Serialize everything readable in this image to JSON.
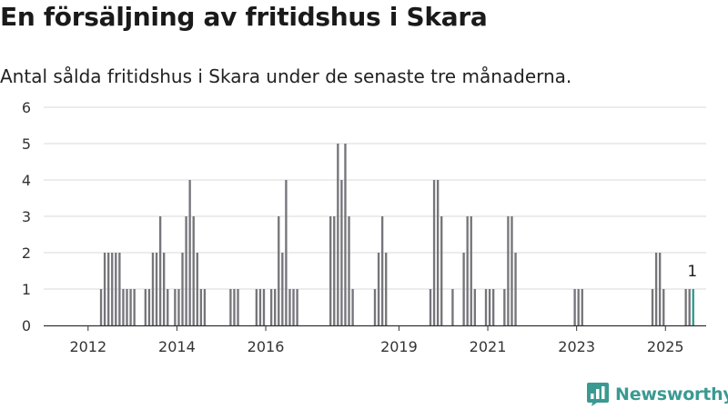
{
  "header": {
    "title": "En försäljning av fritidshus i Skara",
    "subtitle": "Antal sålda fritidshus i Skara under de senaste tre månaderna."
  },
  "brand": {
    "name": "Newsworthy",
    "color": "#3a9a91"
  },
  "colors": {
    "bar": "#76757b",
    "highlight": "#2a9d8f",
    "grid": "#d8d8d8",
    "axis": "#333333"
  },
  "chart_data": {
    "type": "bar",
    "title": "En försäljning av fritidshus i Skara",
    "subtitle": "Antal sålda fritidshus i Skara under de senaste tre månaderna.",
    "xlabel": "",
    "ylabel": "",
    "ylim": [
      0,
      6
    ],
    "yticks": [
      "0",
      "1",
      "2",
      "3",
      "4",
      "5",
      "6"
    ],
    "xticks": [
      {
        "label": "2012",
        "x": "2012-01"
      },
      {
        "label": "2014",
        "x": "2014-01"
      },
      {
        "label": "2016",
        "x": "2016-01"
      },
      {
        "label": "2019",
        "x": "2019-01"
      },
      {
        "label": "2021",
        "x": "2021-01"
      },
      {
        "label": "2023",
        "x": "2023-01"
      },
      {
        "label": "2025",
        "x": "2025-01"
      }
    ],
    "grid": true,
    "bars": [
      {
        "x": "2012-04",
        "y": 1
      },
      {
        "x": "2012-05",
        "y": 2
      },
      {
        "x": "2012-06",
        "y": 2
      },
      {
        "x": "2012-07",
        "y": 2
      },
      {
        "x": "2012-08",
        "y": 2
      },
      {
        "x": "2012-09",
        "y": 2
      },
      {
        "x": "2012-10",
        "y": 1
      },
      {
        "x": "2012-11",
        "y": 1
      },
      {
        "x": "2012-12",
        "y": 1
      },
      {
        "x": "2013-01",
        "y": 1
      },
      {
        "x": "2013-04",
        "y": 1
      },
      {
        "x": "2013-05",
        "y": 1
      },
      {
        "x": "2013-06",
        "y": 2
      },
      {
        "x": "2013-07",
        "y": 2
      },
      {
        "x": "2013-08",
        "y": 3
      },
      {
        "x": "2013-09",
        "y": 2
      },
      {
        "x": "2013-10",
        "y": 1
      },
      {
        "x": "2013-12",
        "y": 1
      },
      {
        "x": "2014-01",
        "y": 1
      },
      {
        "x": "2014-02",
        "y": 2
      },
      {
        "x": "2014-03",
        "y": 3
      },
      {
        "x": "2014-04",
        "y": 4
      },
      {
        "x": "2014-05",
        "y": 3
      },
      {
        "x": "2014-06",
        "y": 2
      },
      {
        "x": "2014-07",
        "y": 1
      },
      {
        "x": "2014-08",
        "y": 1
      },
      {
        "x": "2015-03",
        "y": 1
      },
      {
        "x": "2015-04",
        "y": 1
      },
      {
        "x": "2015-05",
        "y": 1
      },
      {
        "x": "2015-10",
        "y": 1
      },
      {
        "x": "2015-11",
        "y": 1
      },
      {
        "x": "2015-12",
        "y": 1
      },
      {
        "x": "2016-02",
        "y": 1
      },
      {
        "x": "2016-03",
        "y": 1
      },
      {
        "x": "2016-04",
        "y": 3
      },
      {
        "x": "2016-05",
        "y": 2
      },
      {
        "x": "2016-06",
        "y": 4
      },
      {
        "x": "2016-07",
        "y": 1
      },
      {
        "x": "2016-08",
        "y": 1
      },
      {
        "x": "2016-09",
        "y": 1
      },
      {
        "x": "2017-06",
        "y": 3
      },
      {
        "x": "2017-07",
        "y": 3
      },
      {
        "x": "2017-08",
        "y": 5
      },
      {
        "x": "2017-09",
        "y": 4
      },
      {
        "x": "2017-10",
        "y": 5
      },
      {
        "x": "2017-11",
        "y": 3
      },
      {
        "x": "2017-12",
        "y": 1
      },
      {
        "x": "2018-06",
        "y": 1
      },
      {
        "x": "2018-07",
        "y": 2
      },
      {
        "x": "2018-08",
        "y": 3
      },
      {
        "x": "2018-09",
        "y": 2
      },
      {
        "x": "2019-09",
        "y": 1
      },
      {
        "x": "2019-10",
        "y": 4
      },
      {
        "x": "2019-11",
        "y": 4
      },
      {
        "x": "2019-12",
        "y": 3
      },
      {
        "x": "2020-03",
        "y": 1
      },
      {
        "x": "2020-06",
        "y": 2
      },
      {
        "x": "2020-07",
        "y": 3
      },
      {
        "x": "2020-08",
        "y": 3
      },
      {
        "x": "2020-09",
        "y": 1
      },
      {
        "x": "2020-12",
        "y": 1
      },
      {
        "x": "2021-01",
        "y": 1
      },
      {
        "x": "2021-02",
        "y": 1
      },
      {
        "x": "2021-05",
        "y": 1
      },
      {
        "x": "2021-06",
        "y": 3
      },
      {
        "x": "2021-07",
        "y": 3
      },
      {
        "x": "2021-08",
        "y": 2
      },
      {
        "x": "2022-12",
        "y": 1
      },
      {
        "x": "2023-01",
        "y": 1
      },
      {
        "x": "2023-02",
        "y": 1
      },
      {
        "x": "2024-09",
        "y": 1
      },
      {
        "x": "2024-10",
        "y": 2
      },
      {
        "x": "2024-11",
        "y": 2
      },
      {
        "x": "2024-12",
        "y": 1
      },
      {
        "x": "2025-06",
        "y": 1
      },
      {
        "x": "2025-07",
        "y": 1
      },
      {
        "x": "2025-08",
        "y": 1
      }
    ],
    "highlight": {
      "x": "2025-08",
      "y": 1,
      "label": "1"
    }
  }
}
